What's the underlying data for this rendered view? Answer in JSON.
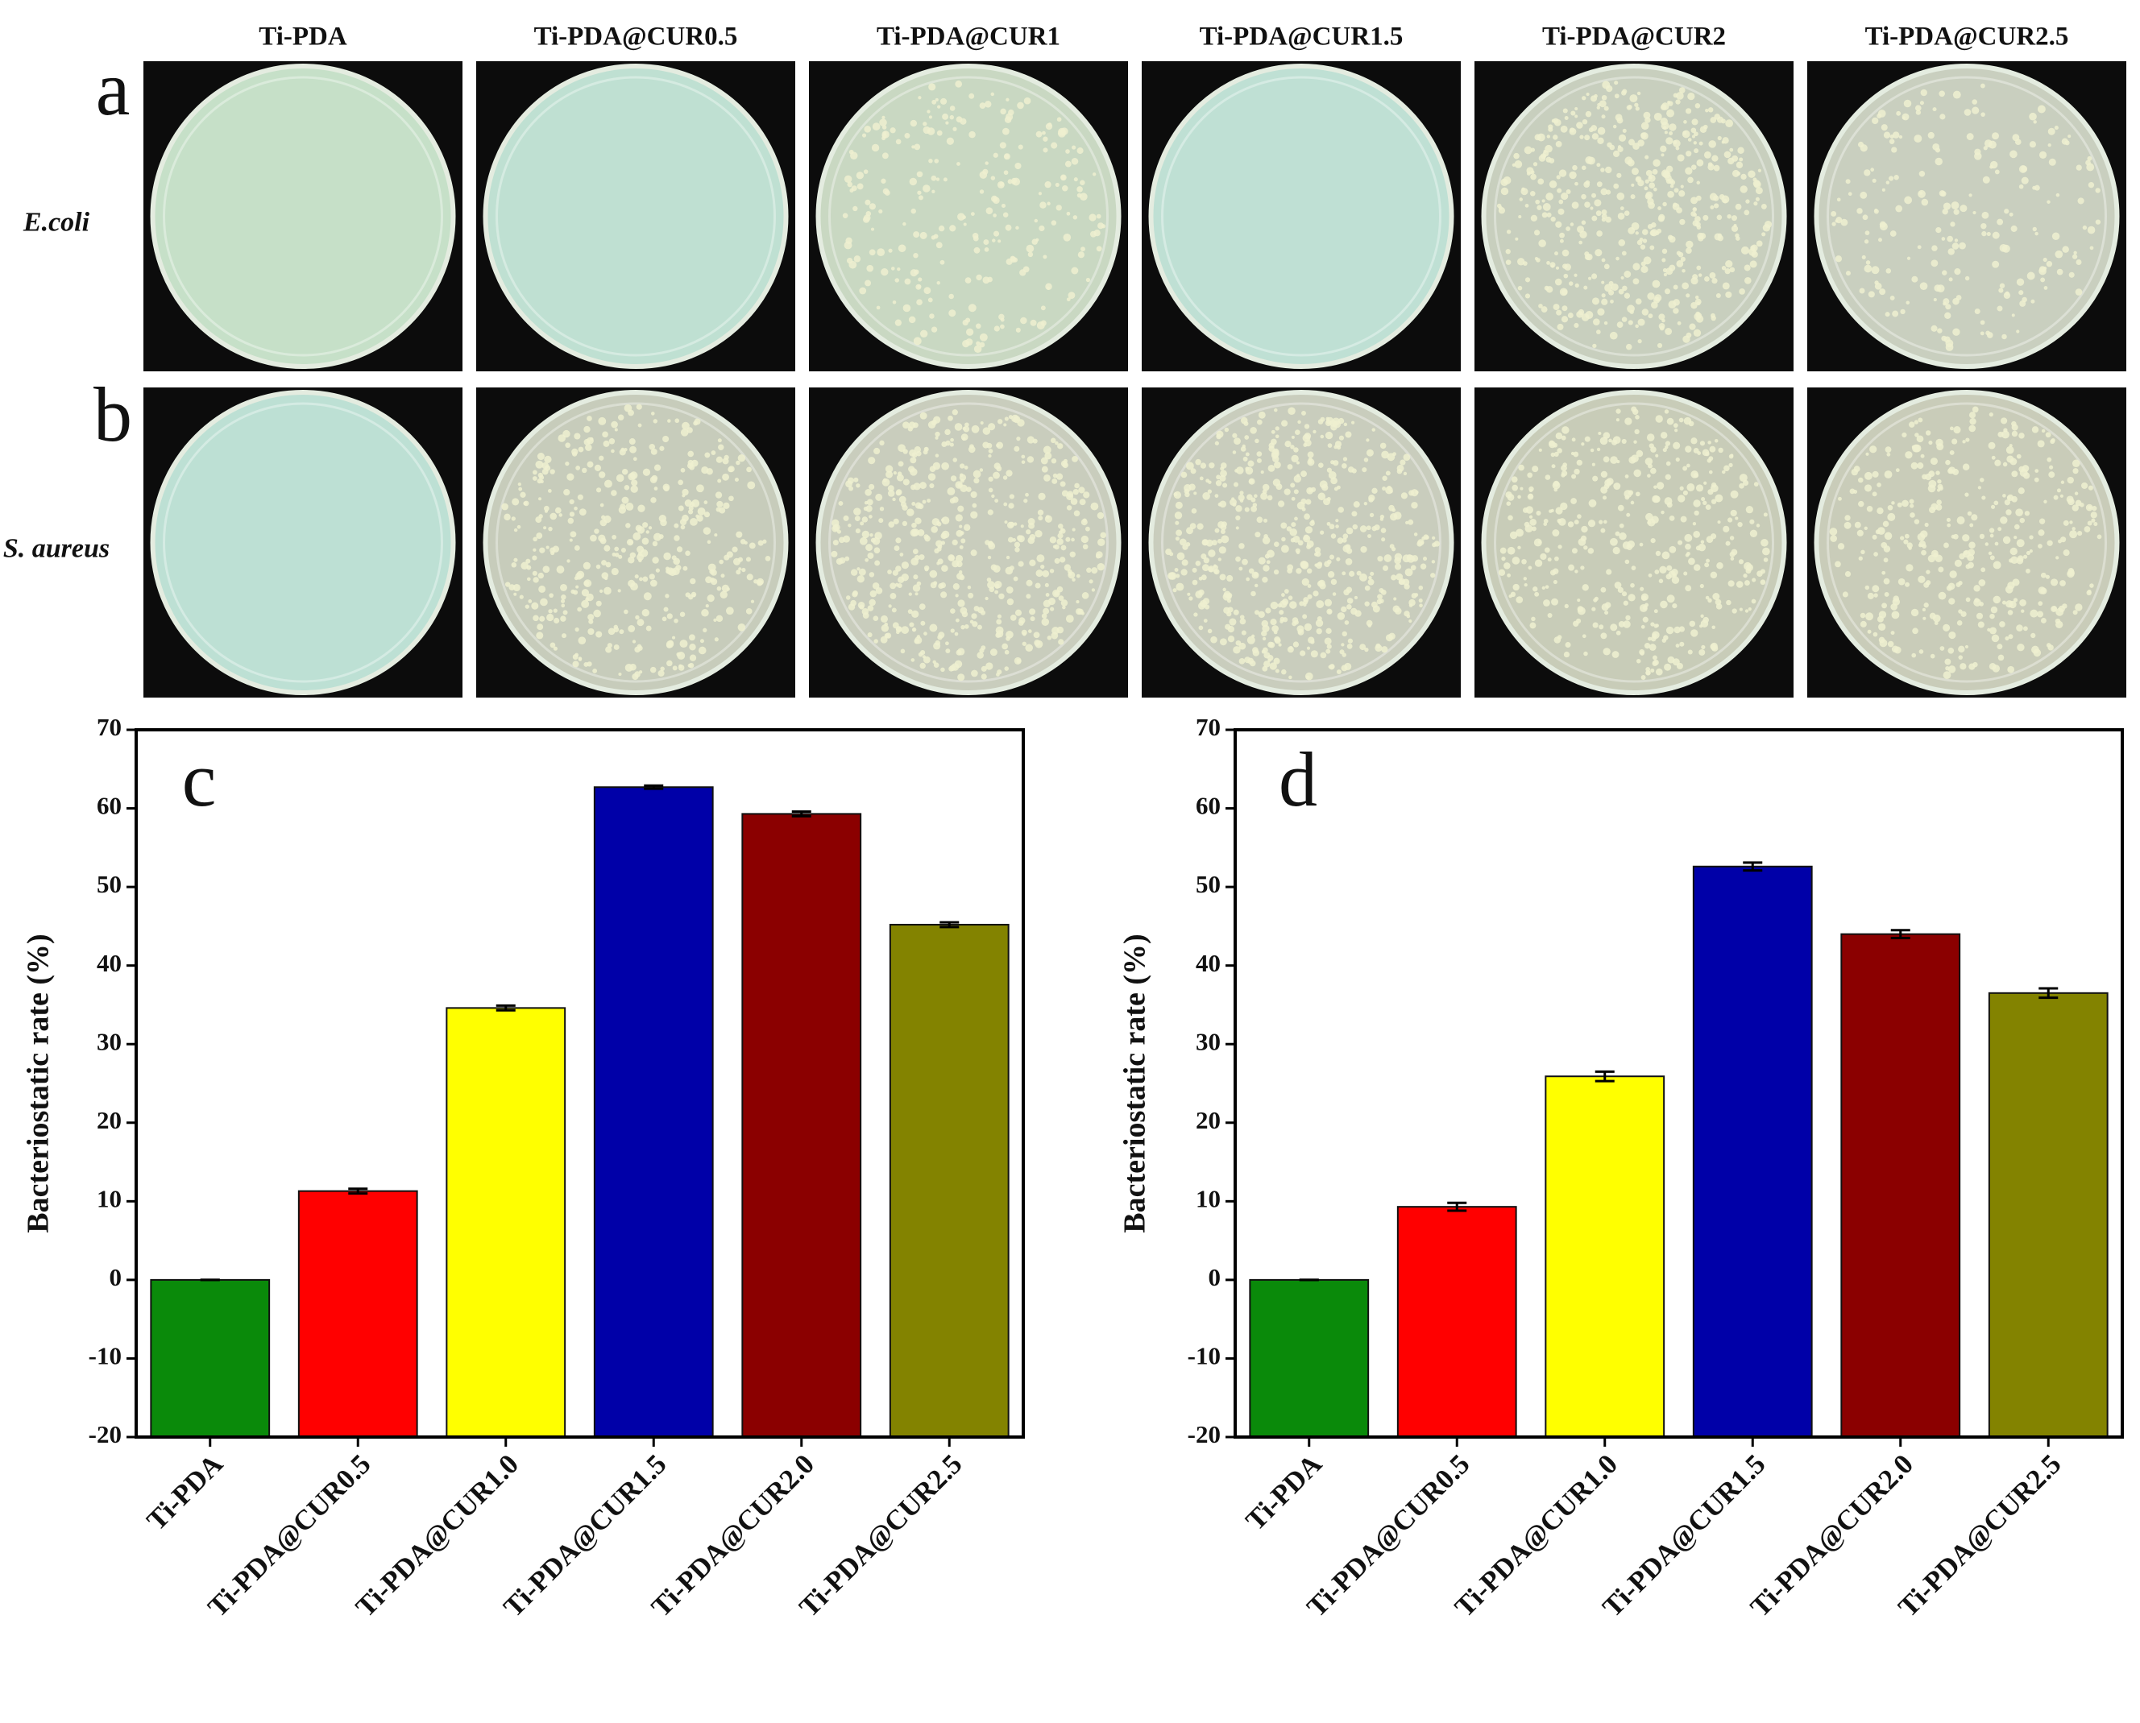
{
  "photo_grid": {
    "columns": [
      "Ti-PDA",
      "Ti-PDA@CUR0.5",
      "Ti-PDA@CUR1",
      "Ti-PDA@CUR1.5",
      "Ti-PDA@CUR2",
      "Ti-PDA@CUR2.5"
    ],
    "rows": [
      {
        "panel": "a",
        "label": "E.coli"
      },
      {
        "panel": "b",
        "label": "S. aureus"
      }
    ]
  },
  "chart_data": [
    {
      "type": "bar",
      "panel": "c",
      "ylabel": "Bacteriostatic rate (%)",
      "categories": [
        "Ti-PDA",
        "Ti-PDA@CUR0.5",
        "Ti-PDA@CUR1.0",
        "Ti-PDA@CUR1.5",
        "Ti-PDA@CUR2.0",
        "Ti-PDA@CUR2.5"
      ],
      "values": [
        0,
        11.3,
        34.6,
        62.7,
        59.3,
        45.2
      ],
      "errors": [
        0,
        0.3,
        0.3,
        0.2,
        0.3,
        0.3
      ],
      "colors": [
        "#0a8a0a",
        "#ff0000",
        "#ffff00",
        "#0000a8",
        "#8b0000",
        "#838300"
      ],
      "ylim": [
        -20,
        70
      ],
      "yticks": [
        -20,
        -10,
        0,
        10,
        20,
        30,
        40,
        50,
        60,
        70
      ]
    },
    {
      "type": "bar",
      "panel": "d",
      "ylabel": "Bacteriostatic rate (%)",
      "categories": [
        "Ti-PDA",
        "Ti-PDA@CUR0.5",
        "Ti-PDA@CUR1.0",
        "Ti-PDA@CUR1.5",
        "Ti-PDA@CUR2.0",
        "Ti-PDA@CUR2.5"
      ],
      "values": [
        0,
        9.3,
        25.9,
        52.6,
        44.0,
        36.5
      ],
      "errors": [
        0,
        0.5,
        0.6,
        0.5,
        0.5,
        0.6
      ],
      "colors": [
        "#0a8a0a",
        "#ff0000",
        "#ffff00",
        "#0000a8",
        "#8b0000",
        "#838300"
      ],
      "ylim": [
        -20,
        70
      ],
      "yticks": [
        -20,
        -10,
        0,
        10,
        20,
        30,
        40,
        50,
        60,
        70
      ]
    }
  ]
}
